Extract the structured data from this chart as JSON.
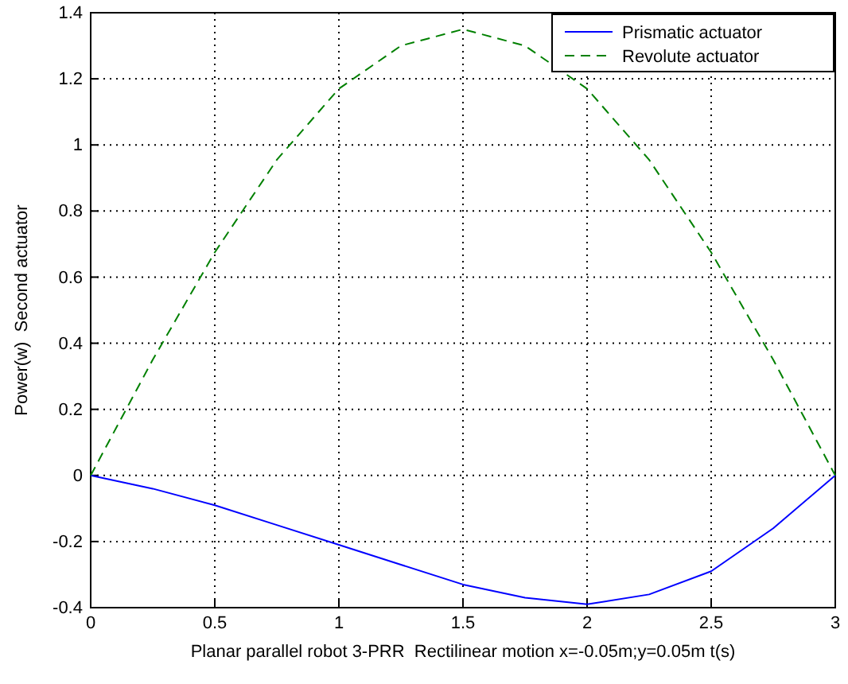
{
  "chart_data": {
    "type": "line",
    "xlabel": "Planar parallel robot 3-PRR  Rectilinear motion x=-0.05m;y=0.05m t(s)",
    "ylabel": "Power(w)  Second actuator",
    "x": [
      0,
      0.25,
      0.5,
      0.75,
      1,
      1.25,
      1.5,
      1.75,
      2,
      2.25,
      2.5,
      2.75,
      3
    ],
    "series": [
      {
        "name": "Prismatic actuator",
        "color": "#0000ff",
        "line_style": "solid",
        "values": [
          0,
          -0.04,
          -0.09,
          -0.15,
          -0.21,
          -0.27,
          -0.33,
          -0.37,
          -0.39,
          -0.36,
          -0.29,
          -0.16,
          0
        ]
      },
      {
        "name": "Revolute actuator",
        "color": "#008000",
        "line_style": "dashed",
        "values": [
          0,
          0.35,
          0.675,
          0.955,
          1.17,
          1.3,
          1.35,
          1.3,
          1.17,
          0.955,
          0.675,
          0.35,
          0
        ]
      }
    ],
    "xlim": [
      0,
      3
    ],
    "xticks": [
      0,
      0.5,
      1,
      1.5,
      2,
      2.5,
      3
    ],
    "ylim": [
      -0.4,
      1.4
    ],
    "yticks": [
      -0.4,
      -0.2,
      0,
      0.2,
      0.4,
      0.6,
      0.8,
      1,
      1.2,
      1.4
    ],
    "grid": true,
    "legend": "top right",
    "marker": "none"
  }
}
